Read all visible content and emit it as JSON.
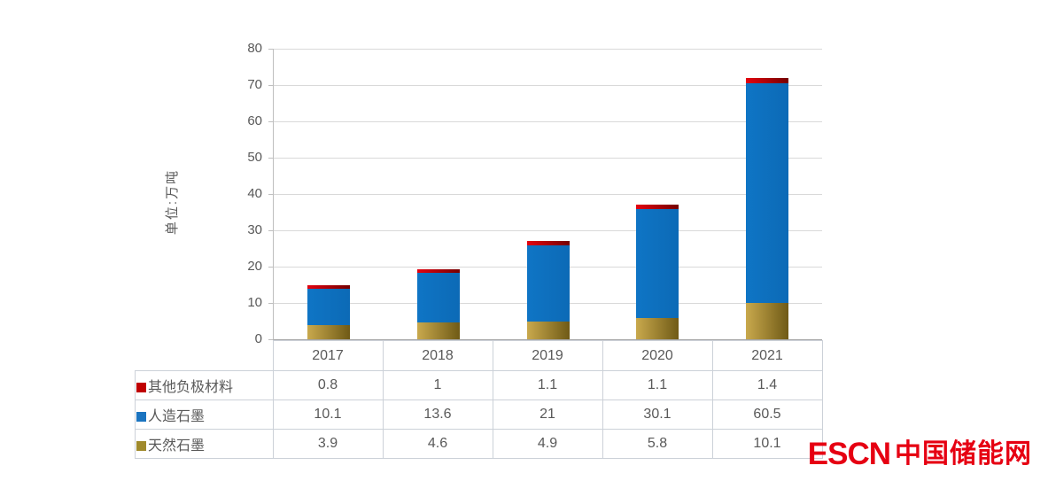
{
  "chart_data": {
    "type": "bar",
    "stacked": true,
    "categories": [
      "2017",
      "2018",
      "2019",
      "2020",
      "2021"
    ],
    "series": [
      {
        "name": "其他负极材料",
        "values": [
          0.8,
          1,
          1.1,
          1.1,
          1.4
        ],
        "color": "#c00000",
        "gradient": [
          "#e40310",
          "#740001"
        ],
        "swatch": "#c00000"
      },
      {
        "name": "人造石墨",
        "values": [
          10.1,
          13.6,
          21,
          30.1,
          60.5
        ],
        "color": "#0d71c1",
        "gradient": [
          "#0f75c5",
          "#0c6ab6"
        ],
        "swatch": "#1b74c0"
      },
      {
        "name": "天然石墨",
        "values": [
          3.9,
          4.6,
          4.9,
          5.8,
          10.1
        ],
        "color": "#a88d2f",
        "gradient": [
          "#c9a94d",
          "#6f5a16"
        ],
        "swatch": "#a08a2c"
      }
    ],
    "title": "",
    "xlabel": "",
    "ylabel": "单位:万吨",
    "ylim": [
      0,
      80
    ],
    "y_ticks": [
      0,
      10,
      20,
      30,
      40,
      50,
      60,
      70,
      80
    ],
    "grid": true,
    "legend_position": "table-left-column"
  },
  "colors": {
    "gridline": "#d9d9d9",
    "axis": "#bfbfbf",
    "tick_text": "#595959",
    "table_border": "#ccd1d8",
    "table_text": "#595959",
    "logo_red": "#e60012"
  },
  "logo": {
    "text_en": "ESCN",
    "text_zh": "中国储能网"
  }
}
